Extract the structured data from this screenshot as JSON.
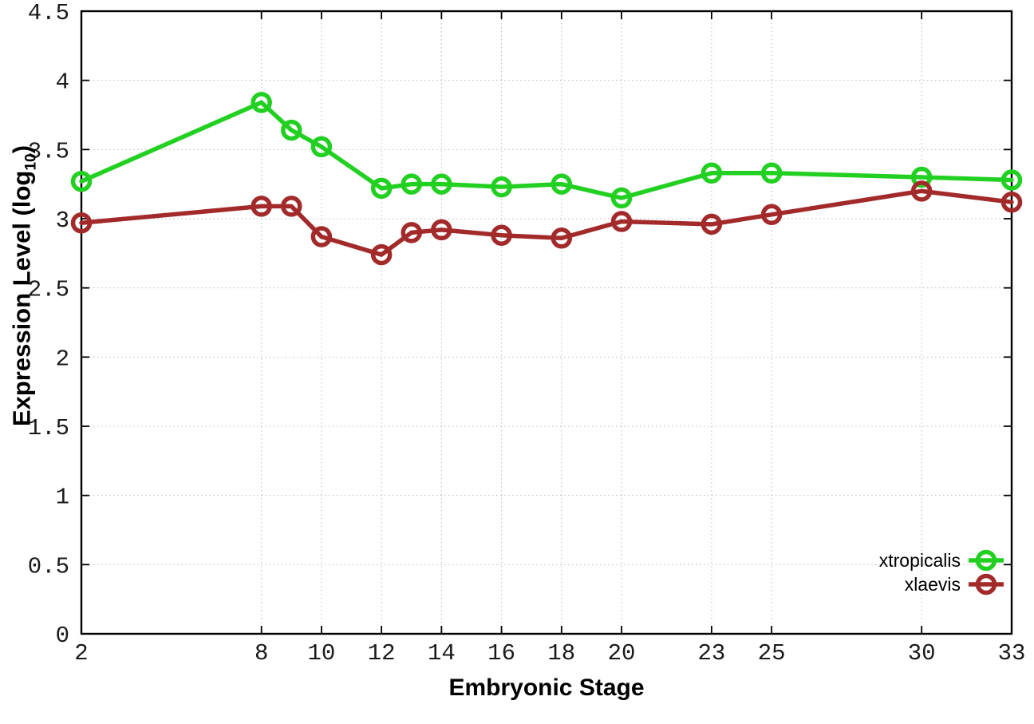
{
  "figure": {
    "background": "#ffffff",
    "x_axis_title": "Embryonic Stage",
    "y_axis_title_main": "Expression Level (log",
    "y_axis_title_sub": "10",
    "y_axis_title_close": ")"
  },
  "chart_data": {
    "type": "line",
    "title": "",
    "xlabel": "Embryonic Stage",
    "ylabel": "Expression Level (log10)",
    "x": [
      2,
      8,
      9,
      10,
      12,
      13,
      14,
      16,
      18,
      20,
      23,
      25,
      30,
      33
    ],
    "xtick_labels": [
      "2",
      "8",
      "10",
      "12",
      "14",
      "16",
      "18",
      "20",
      "23",
      "25",
      "30",
      "33"
    ],
    "xtick_values": [
      2,
      8,
      10,
      12,
      14,
      16,
      18,
      20,
      23,
      25,
      30,
      33
    ],
    "ytick_labels": [
      "0",
      "0.5",
      "1",
      "1.5",
      "2",
      "2.5",
      "3",
      "3.5",
      "4",
      "4.5"
    ],
    "ytick_values": [
      0,
      0.5,
      1,
      1.5,
      2,
      2.5,
      3,
      3.5,
      4,
      4.5
    ],
    "xlim": [
      2,
      33
    ],
    "ylim": [
      0,
      4.5
    ],
    "grid": true,
    "legend_position": "inside bottom-right",
    "series": [
      {
        "name": "xtropicalis",
        "color": "#22d022",
        "values": [
          3.27,
          3.84,
          3.64,
          3.52,
          3.22,
          3.25,
          3.25,
          3.23,
          3.25,
          3.15,
          3.33,
          3.33,
          3.3,
          3.28
        ]
      },
      {
        "name": "xlaevis",
        "color": "#a32a2a",
        "values": [
          2.97,
          3.09,
          3.09,
          2.87,
          2.74,
          2.9,
          2.92,
          2.88,
          2.86,
          2.98,
          2.96,
          3.03,
          3.2,
          3.12
        ]
      }
    ]
  },
  "style": {
    "grid_color": "#bbbbbb",
    "axis_color": "#000000",
    "tick_label_color": "#1a1a1a",
    "line_width": 5.5,
    "marker_radius": 10.5,
    "tick_length": 10
  }
}
